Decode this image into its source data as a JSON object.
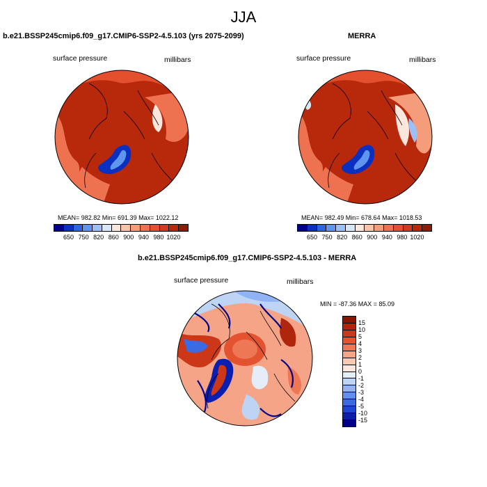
{
  "figure": {
    "title": "JJA"
  },
  "colors": {
    "warm_scale": [
      "#00008b",
      "#0b2fbe",
      "#2d64e0",
      "#5f95ef",
      "#9cc0f5",
      "#d8e7f7",
      "#fde6db",
      "#f9c3a8",
      "#f59d7b",
      "#ee7150",
      "#e4502e",
      "#cf3c17",
      "#b8290c",
      "#8f1a05"
    ],
    "diff_scale": [
      "#00008b",
      "#0a1fb0",
      "#1f46d2",
      "#3a6be5",
      "#5f8ff0",
      "#8fb3f4",
      "#bdd4f5",
      "#e5eef8",
      "#fde6db",
      "#fbc9b1",
      "#f6a487",
      "#ee7855",
      "#e3532f",
      "#cc3817",
      "#b0260c",
      "#8b1505"
    ]
  },
  "chart_data": [
    {
      "type": "heatmap",
      "title": "b.e21.BSSP245cmip6.f09_g17.CMIP6-SSP2-4.5.103 (yrs 2075-2099)",
      "variable": "surface pressure",
      "units": "millibars",
      "projection": "north polar stereographic",
      "stats": {
        "mean": 982.82,
        "min": 691.39,
        "max": 1022.12
      },
      "stats_text": "MEAN= 982.82  Min= 691.39  Max= 1022.12",
      "colorbar": {
        "orientation": "horizontal",
        "tick_labels": [
          "650",
          "750",
          "820",
          "860",
          "900",
          "940",
          "980",
          "1020"
        ]
      }
    },
    {
      "type": "heatmap",
      "title": "MERRA",
      "variable": "surface pressure",
      "units": "millibars",
      "projection": "north polar stereographic",
      "stats": {
        "mean": 982.49,
        "min": 678.64,
        "max": 1018.53
      },
      "stats_text": "MEAN= 982.49  Min= 678.64  Max= 1018.53",
      "colorbar": {
        "orientation": "horizontal",
        "tick_labels": [
          "650",
          "750",
          "820",
          "860",
          "900",
          "940",
          "980",
          "1020"
        ]
      }
    },
    {
      "type": "heatmap",
      "title": "b.e21.BSSP245cmip6.f09_g17.CMIP6-SSP2-4.5.103 - MERRA",
      "variable": "surface pressure",
      "units": "millibars",
      "projection": "north polar stereographic",
      "stats": {
        "min": -87.36,
        "max": 85.09
      },
      "stats_text": "MIN = -87.36 MAX =  85.09",
      "colorbar": {
        "orientation": "vertical",
        "tick_labels": [
          "15",
          "10",
          "5",
          "4",
          "3",
          "2",
          "1",
          "0",
          "-1",
          "-2",
          "-3",
          "-4",
          "-5",
          "-10",
          "-15"
        ]
      }
    }
  ]
}
